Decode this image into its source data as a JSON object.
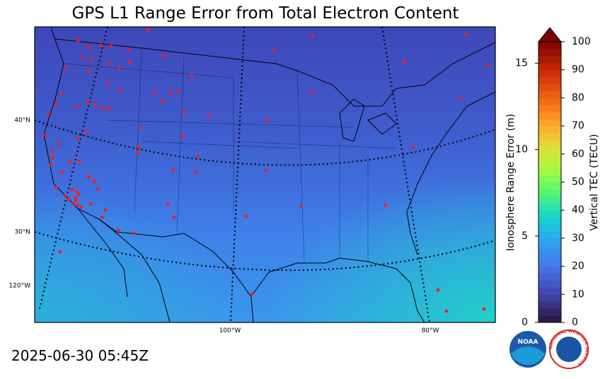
{
  "header": {
    "title": "GPS L1 Range Error from Total Electron Content",
    "timestamp": "2025-06-30 05:45Z"
  },
  "map": {
    "latitude_labels": [
      "40°N",
      "30°N"
    ],
    "longitude_labels": [
      "120°W",
      "100°W",
      "80°W"
    ]
  },
  "colorbar": {
    "left_axis": {
      "label": "Ionosphere Range Error (m)",
      "lim": [
        0,
        16.24
      ],
      "ticks": [
        0,
        5,
        10,
        15
      ]
    },
    "right_axis": {
      "label": "Vertical TEC (TECU)",
      "lim": [
        0,
        100
      ],
      "ticks": [
        0,
        10,
        20,
        30,
        40,
        50,
        60,
        70,
        80,
        90,
        100
      ]
    }
  },
  "logos": {
    "noaa": "NOAA",
    "nws": "NATIONAL WEATHER SERVICE"
  }
}
